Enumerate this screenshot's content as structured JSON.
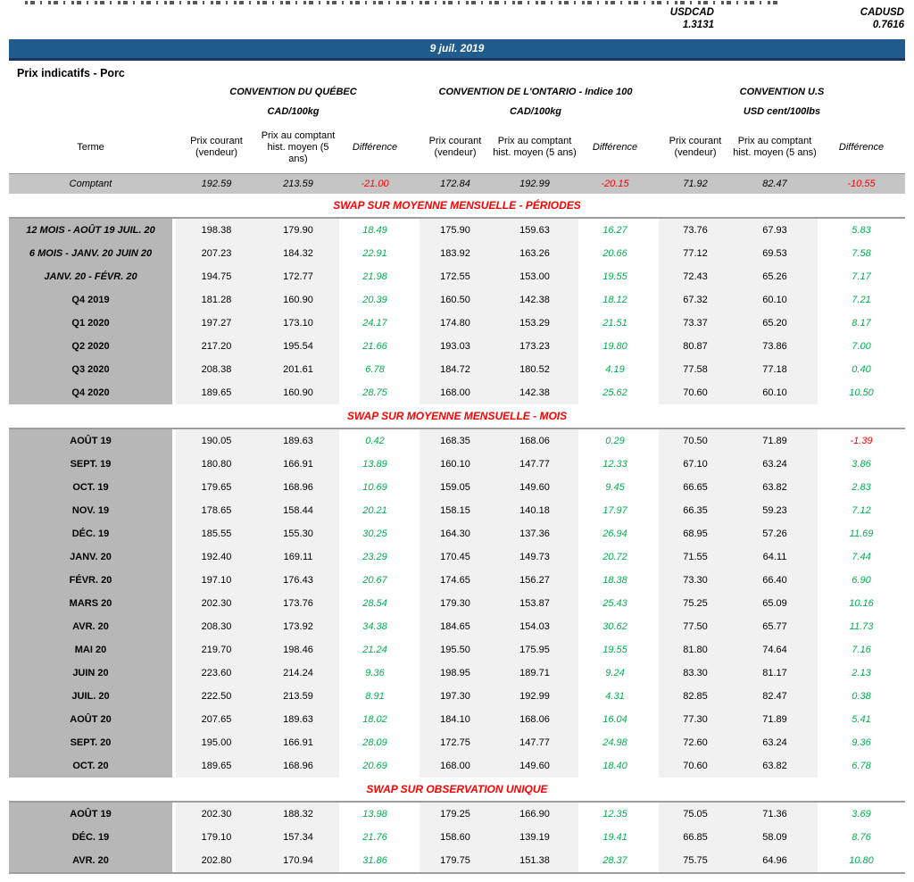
{
  "fx": {
    "usdcad_label": "USDCAD",
    "usdcad_value": "1.3131",
    "cadusd_label": "CADUSD",
    "cadusd_value": "0.7616"
  },
  "banner": {
    "date": "9 juil. 2019"
  },
  "page_title": "Prix indicatifs - Porc",
  "header": {
    "terme": "Terme",
    "groups": [
      {
        "title": "CONVENTION DU QUÉBEC",
        "unit": "CAD/100kg"
      },
      {
        "title": "CONVENTION DE L'ONTARIO - Indice 100",
        "unit": "CAD/100kg"
      },
      {
        "title": "CONVENTION U.S",
        "unit": "USD cent/100lbs"
      }
    ],
    "sub": [
      "Prix courant (vendeur)",
      "Prix au comptant hist. moyen (5 ans)",
      "Différence"
    ]
  },
  "comptant": {
    "label": "Comptant",
    "values": [
      "192.59",
      "213.59",
      "-21.00",
      "172.84",
      "192.99",
      "-20.15",
      "71.92",
      "82.47",
      "-10.55"
    ]
  },
  "sections": [
    {
      "title": "SWAP SUR MOYENNE MENSUELLE - PÉRIODES",
      "rows": [
        {
          "terme": "12 MOIS -  AOÛT 19 JUIL. 20",
          "italic": true,
          "values": [
            "198.38",
            "179.90",
            "18.49",
            "175.90",
            "159.63",
            "16.27",
            "73.76",
            "67.93",
            "5.83"
          ]
        },
        {
          "terme": "6 MOIS -  JANV. 20 JUIN 20",
          "italic": true,
          "values": [
            "207.23",
            "184.32",
            "22.91",
            "183.92",
            "163.26",
            "20.66",
            "77.12",
            "69.53",
            "7.58"
          ]
        },
        {
          "terme": "JANV. 20 -  FÉVR. 20",
          "italic": true,
          "values": [
            "194.75",
            "172.77",
            "21.98",
            "172.55",
            "153.00",
            "19.55",
            "72.43",
            "65.26",
            "7.17"
          ]
        },
        {
          "terme": "Q4 2019",
          "italic": false,
          "values": [
            "181.28",
            "160.90",
            "20.39",
            "160.50",
            "142.38",
            "18.12",
            "67.32",
            "60.10",
            "7.21"
          ]
        },
        {
          "terme": "Q1 2020",
          "italic": false,
          "values": [
            "197.27",
            "173.10",
            "24.17",
            "174.80",
            "153.29",
            "21.51",
            "73.37",
            "65.20",
            "8.17"
          ]
        },
        {
          "terme": "Q2 2020",
          "italic": false,
          "values": [
            "217.20",
            "195.54",
            "21.66",
            "193.03",
            "173.23",
            "19.80",
            "80.87",
            "73.86",
            "7.00"
          ]
        },
        {
          "terme": "Q3 2020",
          "italic": false,
          "values": [
            "208.38",
            "201.61",
            "6.78",
            "184.72",
            "180.52",
            "4.19",
            "77.58",
            "77.18",
            "0.40"
          ]
        },
        {
          "terme": "Q4 2020",
          "italic": false,
          "values": [
            "189.65",
            "160.90",
            "28.75",
            "168.00",
            "142.38",
            "25.62",
            "70.60",
            "60.10",
            "10.50"
          ]
        }
      ]
    },
    {
      "title": "SWAP SUR MOYENNE MENSUELLE - MOIS",
      "rows": [
        {
          "terme": "AOÛT 19",
          "italic": false,
          "values": [
            "190.05",
            "189.63",
            "0.42",
            "168.35",
            "168.06",
            "0.29",
            "70.50",
            "71.89",
            "-1.39"
          ]
        },
        {
          "terme": "SEPT. 19",
          "italic": false,
          "values": [
            "180.80",
            "166.91",
            "13.89",
            "160.10",
            "147.77",
            "12.33",
            "67.10",
            "63.24",
            "3.86"
          ]
        },
        {
          "terme": "OCT. 19",
          "italic": false,
          "values": [
            "179.65",
            "168.96",
            "10.69",
            "159.05",
            "149.60",
            "9.45",
            "66.65",
            "63.82",
            "2.83"
          ]
        },
        {
          "terme": "NOV. 19",
          "italic": false,
          "values": [
            "178.65",
            "158.44",
            "20.21",
            "158.15",
            "140.18",
            "17.97",
            "66.35",
            "59.23",
            "7.12"
          ]
        },
        {
          "terme": "DÉC. 19",
          "italic": false,
          "values": [
            "185.55",
            "155.30",
            "30.25",
            "164.30",
            "137.36",
            "26.94",
            "68.95",
            "57.26",
            "11.69"
          ]
        },
        {
          "terme": "JANV. 20",
          "italic": false,
          "values": [
            "192.40",
            "169.11",
            "23.29",
            "170.45",
            "149.73",
            "20.72",
            "71.55",
            "64.11",
            "7.44"
          ]
        },
        {
          "terme": "FÉVR. 20",
          "italic": false,
          "values": [
            "197.10",
            "176.43",
            "20.67",
            "174.65",
            "156.27",
            "18.38",
            "73.30",
            "66.40",
            "6.90"
          ]
        },
        {
          "terme": "MARS 20",
          "italic": false,
          "values": [
            "202.30",
            "173.76",
            "28.54",
            "179.30",
            "153.87",
            "25.43",
            "75.25",
            "65.09",
            "10.16"
          ]
        },
        {
          "terme": "AVR. 20",
          "italic": false,
          "values": [
            "208.30",
            "173.92",
            "34.38",
            "184.65",
            "154.03",
            "30.62",
            "77.50",
            "65.77",
            "11.73"
          ]
        },
        {
          "terme": "MAI 20",
          "italic": false,
          "values": [
            "219.70",
            "198.46",
            "21.24",
            "195.50",
            "175.95",
            "19.55",
            "81.80",
            "74.64",
            "7.16"
          ]
        },
        {
          "terme": "JUIN 20",
          "italic": false,
          "values": [
            "223.60",
            "214.24",
            "9.36",
            "198.95",
            "189.71",
            "9.24",
            "83.30",
            "81.17",
            "2.13"
          ]
        },
        {
          "terme": "JUIL. 20",
          "italic": false,
          "values": [
            "222.50",
            "213.59",
            "8.91",
            "197.30",
            "192.99",
            "4.31",
            "82.85",
            "82.47",
            "0.38"
          ]
        },
        {
          "terme": "AOÛT 20",
          "italic": false,
          "values": [
            "207.65",
            "189.63",
            "18.02",
            "184.10",
            "168.06",
            "16.04",
            "77.30",
            "71.89",
            "5.41"
          ]
        },
        {
          "terme": "SEPT. 20",
          "italic": false,
          "values": [
            "195.00",
            "166.91",
            "28.09",
            "172.75",
            "147.77",
            "24.98",
            "72.60",
            "63.24",
            "9.36"
          ]
        },
        {
          "terme": "OCT. 20",
          "italic": false,
          "values": [
            "189.65",
            "168.96",
            "20.69",
            "168.00",
            "149.60",
            "18.40",
            "70.60",
            "63.82",
            "6.78"
          ]
        }
      ]
    },
    {
      "title": "SWAP SUR OBSERVATION UNIQUE",
      "rows": [
        {
          "terme": "AOÛT 19",
          "italic": false,
          "values": [
            "202.30",
            "188.32",
            "13.98",
            "179.25",
            "166.90",
            "12.35",
            "75.05",
            "71.36",
            "3.69"
          ]
        },
        {
          "terme": "DÉC. 19",
          "italic": false,
          "values": [
            "179.10",
            "157.34",
            "21.76",
            "158.60",
            "139.19",
            "19.41",
            "66.85",
            "58.09",
            "8.76"
          ]
        },
        {
          "terme": "AVR. 20",
          "italic": false,
          "values": [
            "202.80",
            "170.94",
            "31.86",
            "179.75",
            "151.38",
            "28.37",
            "75.75",
            "64.96",
            "10.80"
          ]
        }
      ]
    }
  ],
  "colors": {
    "banner_bg": "#1F5C8D",
    "positive": "#00B050",
    "negative": "#FF0000",
    "section_title": "#FF0000",
    "label_column_bg": "#b7b7b7",
    "comptant_bg": "#c5c5c5",
    "panel_bg": "#f1f1f1"
  }
}
